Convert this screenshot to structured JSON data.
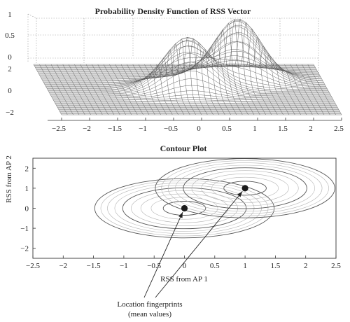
{
  "chart_data": [
    {
      "type": "surface",
      "title": "Probability Density Function of RSS Vector",
      "x_ticks": [
        "−2.5",
        "−2",
        "−1.5",
        "−1",
        "−0.5",
        "0",
        "0.5",
        "1",
        "1.5",
        "2",
        "2.5"
      ],
      "y_ticks": [
        "2",
        "0",
        "−2"
      ],
      "z_ticks": [
        "1",
        "0.5",
        "0"
      ],
      "xlim": [
        -2.5,
        2.5
      ],
      "ylim": [
        -2.5,
        2.5
      ],
      "zlim": [
        0,
        1
      ],
      "grid": true,
      "peaks": [
        {
          "x": 0,
          "y": 0,
          "height": 0.62
        },
        {
          "x": 1,
          "y": 1,
          "height": 0.72
        }
      ]
    },
    {
      "type": "contour",
      "title": "Contour Plot",
      "xlabel": "RSS from AP 1",
      "ylabel": "RSS from AP 2",
      "x_ticks": [
        "−2.5",
        "−2",
        "−1.5",
        "−1",
        "−0.5",
        "0",
        "0.5",
        "1",
        "1.5",
        "2",
        "2.5"
      ],
      "y_ticks": [
        "2",
        "1",
        "0",
        "−1",
        "−2"
      ],
      "xlim": [
        -2.5,
        2.5
      ],
      "ylim": [
        -2.5,
        2.5
      ],
      "grid": false,
      "centers": [
        {
          "x": 0,
          "y": 0
        },
        {
          "x": 1,
          "y": 1
        }
      ],
      "annotation": {
        "line1": "Location fingerprints",
        "line2": "(mean values)"
      }
    }
  ],
  "colors": {
    "mesh": "#555555",
    "contour": "#555555",
    "marker": "#1a1a1a",
    "text": "#222222"
  }
}
